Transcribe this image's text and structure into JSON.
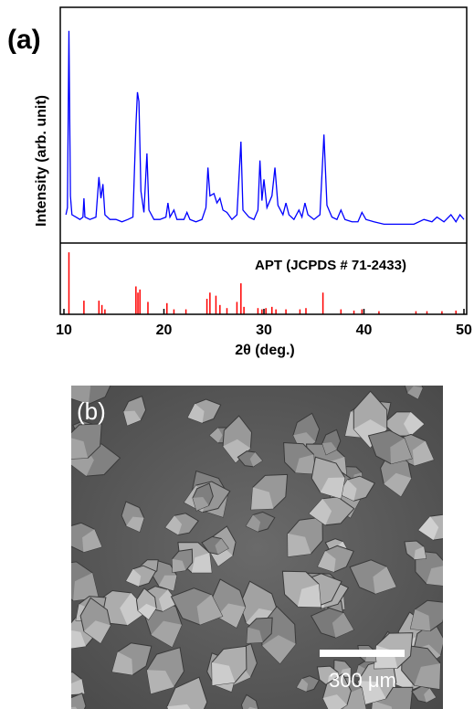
{
  "chart_data": [
    {
      "type": "line",
      "panel_label": "(a)",
      "xlabel": "2θ (deg.)",
      "ylabel": "Intensity (arb. unit)",
      "xlim": [
        10,
        50
      ],
      "xticks": [
        10,
        20,
        30,
        40,
        50
      ],
      "ylim": [
        0,
        100
      ],
      "color": "#0000ff",
      "x": [
        10.2,
        10.35,
        10.5,
        10.65,
        10.8,
        11.2,
        11.6,
        11.9,
        12.0,
        12.1,
        12.6,
        13.2,
        13.5,
        13.7,
        13.9,
        14.1,
        14.6,
        15.2,
        15.8,
        16.4,
        16.9,
        17.2,
        17.35,
        17.5,
        17.7,
        18.0,
        18.3,
        18.5,
        19.0,
        19.6,
        20.2,
        20.4,
        20.6,
        21.0,
        21.3,
        22.0,
        22.3,
        22.6,
        23.2,
        23.8,
        24.2,
        24.4,
        24.6,
        25.0,
        25.3,
        25.6,
        25.9,
        26.3,
        26.8,
        27.3,
        27.7,
        27.9,
        28.5,
        29.0,
        29.4,
        29.6,
        29.8,
        30.0,
        30.3,
        30.8,
        31.1,
        31.4,
        31.9,
        32.2,
        32.5,
        33.0,
        33.5,
        33.8,
        34.1,
        34.4,
        35.0,
        35.6,
        36.0,
        36.3,
        36.8,
        37.3,
        37.7,
        38.1,
        38.8,
        39.4,
        39.8,
        40.2,
        41.0,
        42.0,
        43.0,
        44.0,
        45.0,
        46.0,
        46.8,
        47.3,
        48.0,
        48.7,
        49.2,
        49.6,
        50.0
      ],
      "values": [
        12,
        15,
        90,
        20,
        12,
        11,
        10,
        11,
        19,
        11,
        10,
        11,
        28,
        19,
        25,
        12,
        10,
        10,
        9,
        10,
        11,
        50,
        64,
        60,
        22,
        13,
        38,
        14,
        10,
        10,
        11,
        17,
        11,
        14,
        10,
        10,
        13,
        10,
        9,
        10,
        15,
        32,
        20,
        21,
        17,
        19,
        14,
        13,
        10,
        12,
        43,
        14,
        11,
        10,
        14,
        35,
        18,
        27,
        15,
        20,
        32,
        16,
        12,
        17,
        12,
        10,
        14,
        11,
        17,
        12,
        10,
        12,
        46,
        16,
        11,
        10,
        14,
        10,
        9,
        9,
        13,
        10,
        9,
        8,
        8,
        8,
        8,
        10,
        9,
        11,
        9,
        12,
        9,
        12,
        10
      ]
    },
    {
      "type": "stem",
      "annotation": "APT (JCPDS # 71-2433)",
      "xlim": [
        10,
        50
      ],
      "ylim": [
        0,
        115
      ],
      "color": "#ff0000",
      "x": [
        10.5,
        12.0,
        13.5,
        13.8,
        14.1,
        17.2,
        17.4,
        17.6,
        18.4,
        20.3,
        21.0,
        22.2,
        24.3,
        24.6,
        25.2,
        25.6,
        26.3,
        27.3,
        27.7,
        28.0,
        29.4,
        29.8,
        30.2,
        30.8,
        31.2,
        32.2,
        33.6,
        34.2,
        35.9,
        37.7,
        39.0,
        39.8,
        41.5,
        45.2,
        46.3,
        47.8,
        49.2
      ],
      "values": [
        100,
        22,
        22,
        15,
        8,
        45,
        35,
        40,
        20,
        18,
        8,
        8,
        25,
        35,
        30,
        15,
        10,
        20,
        50,
        12,
        10,
        8,
        10,
        12,
        8,
        8,
        8,
        10,
        35,
        8,
        6,
        8,
        5,
        5,
        5,
        5,
        6
      ]
    }
  ],
  "image": {
    "panel_label": "(b)",
    "scale_bar": "300 μm"
  }
}
